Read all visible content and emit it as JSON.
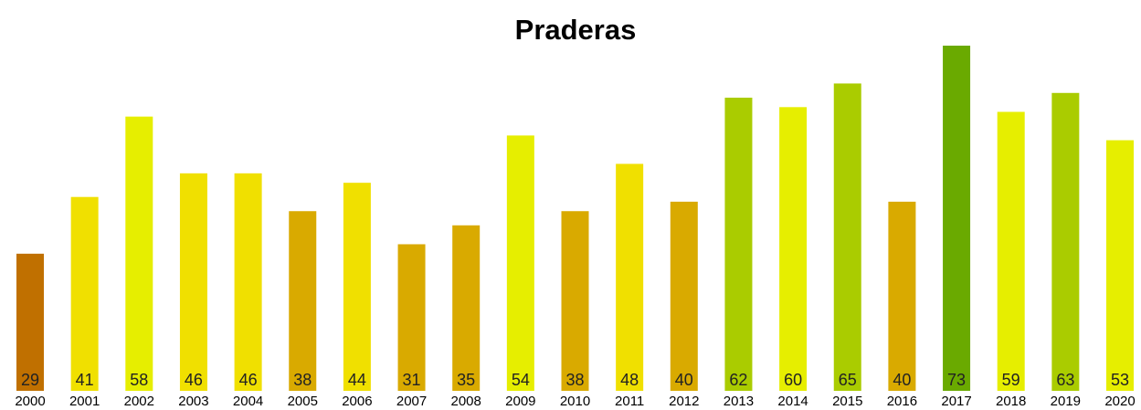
{
  "chart_data": {
    "type": "bar",
    "title": "Praderas",
    "categories": [
      "2000",
      "2001",
      "2002",
      "2003",
      "2004",
      "2005",
      "2006",
      "2007",
      "2008",
      "2009",
      "2010",
      "2011",
      "2012",
      "2013",
      "2014",
      "2015",
      "2016",
      "2017",
      "2018",
      "2019",
      "2020"
    ],
    "values": [
      29,
      41,
      58,
      46,
      46,
      38,
      44,
      31,
      35,
      54,
      38,
      48,
      40,
      62,
      60,
      65,
      40,
      73,
      59,
      63,
      53
    ],
    "colors": [
      "#c07000",
      "#f0e000",
      "#e6ee00",
      "#f0e000",
      "#f0e000",
      "#d9aa00",
      "#f0e000",
      "#d9aa00",
      "#d9aa00",
      "#e6ee00",
      "#d9aa00",
      "#f0e000",
      "#d9aa00",
      "#aacc00",
      "#e6ee00",
      "#aacc00",
      "#d9aa00",
      "#6aaa00",
      "#e6ee00",
      "#aacc00",
      "#e6ee00"
    ]
  }
}
